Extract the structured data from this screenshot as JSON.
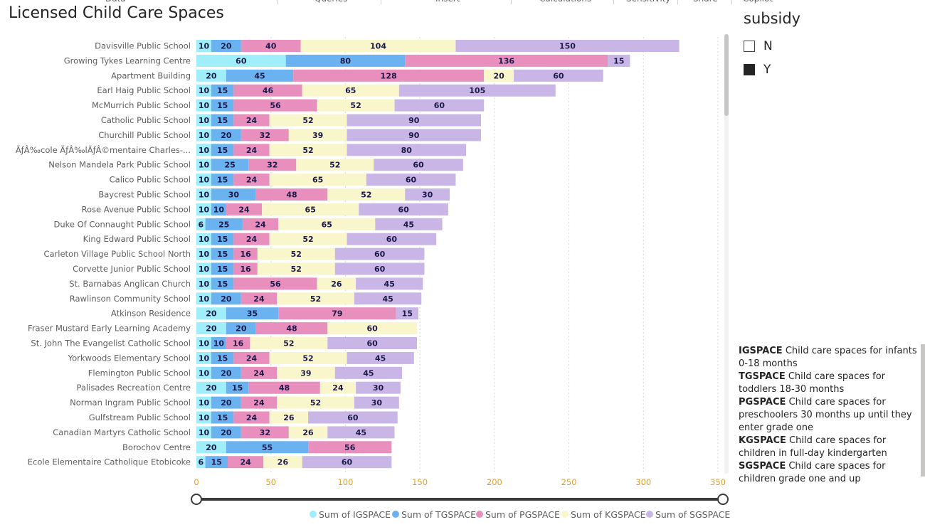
{
  "ribbon": {
    "tabs": [
      "Data",
      "Queries",
      "Insert",
      "Calculations",
      "Sensitivity",
      "Share",
      "Copilot"
    ],
    "tab_positions_hidden": true
  },
  "title": "Licensed Child Care Spaces",
  "slicer": {
    "title": "subsidy",
    "items": [
      {
        "label": "N",
        "checked": false
      },
      {
        "label": "Y",
        "checked": true
      }
    ]
  },
  "notes": [
    {
      "code": "IGSPACE",
      "text": "Child care spaces for infants 0-18 months"
    },
    {
      "code": "TGSPACE",
      "text": "Child care spaces for toddlers 18-30 months"
    },
    {
      "code": "PGSPACE",
      "text": "Child care spaces for preschoolers 30 months up until they enter grade one"
    },
    {
      "code": "KGSPACE",
      "text": "Child care spaces for children in full-day kindergarten"
    },
    {
      "code": "SGSPACE",
      "text": "Child care spaces for children grade one and up"
    }
  ],
  "colors": {
    "IGSPACE": "#a0eefa",
    "TGSPACE": "#6ab2f0",
    "PGSPACE": "#e88fbd",
    "KGSPACE": "#faf6cc",
    "SGSPACE": "#c9b6e6"
  },
  "chart_data": {
    "type": "bar",
    "orientation": "horizontal",
    "stacked": true,
    "title": "Licensed Child Care Spaces",
    "xlim": [
      0,
      350
    ],
    "x_ticks": [
      0,
      50,
      100,
      150,
      200,
      250,
      300,
      350
    ],
    "grid": true,
    "legend_position": "bottom",
    "categories": [
      "Davisville Public School",
      "Growing Tykes Learning Centre",
      "Apartment Building",
      "Earl Haig Public School",
      "McMurrich Public School",
      "Catholic Public School",
      "Churchill Public School",
      "ÃƒÂ‰cole ÃƒÂ‰lÃƒÂ©mentaire Charles-...",
      "Nelson Mandela Park Public School",
      "Calico Public School",
      "Baycrest Public School",
      "Rose Avenue Public School",
      "Duke Of Connaught Public School",
      "King Edward Public School",
      "Carleton Village Public School North",
      "Corvette Junior Public School",
      "St. Barnabas Anglican Church",
      "Rawlinson Community School",
      "Atkinson Residence",
      "Fraser Mustard Early Learning Academy",
      "St. John The Evangelist Catholic School",
      "Yorkwoods Elementary School",
      "Flemington Public School",
      "Palisades Recreation Centre",
      "Norman Ingram Public School",
      "Gulfstream Public School",
      "Canadian Martyrs Catholic School",
      "Borochov Centre",
      "Ecole Elementaire Catholique Etobicoke"
    ],
    "series": [
      {
        "name": "Sum of IGSPACE",
        "key": "IGSPACE",
        "values": [
          10,
          60,
          20,
          10,
          10,
          10,
          10,
          10,
          10,
          10,
          10,
          10,
          6,
          10,
          10,
          10,
          10,
          10,
          20,
          20,
          10,
          10,
          10,
          20,
          10,
          10,
          10,
          20,
          6
        ]
      },
      {
        "name": "Sum of TGSPACE",
        "key": "TGSPACE",
        "values": [
          20,
          80,
          45,
          15,
          15,
          15,
          20,
          15,
          25,
          15,
          30,
          10,
          25,
          15,
          15,
          15,
          15,
          20,
          35,
          20,
          10,
          15,
          20,
          15,
          20,
          15,
          20,
          55,
          15
        ]
      },
      {
        "name": "Sum of PGSPACE",
        "key": "PGSPACE",
        "values": [
          40,
          136,
          128,
          46,
          56,
          24,
          32,
          24,
          32,
          24,
          48,
          24,
          24,
          24,
          16,
          16,
          56,
          24,
          79,
          48,
          16,
          24,
          24,
          48,
          24,
          24,
          32,
          56,
          24
        ]
      },
      {
        "name": "Sum of KGSPACE",
        "key": "KGSPACE",
        "values": [
          104,
          null,
          20,
          65,
          52,
          52,
          39,
          52,
          52,
          65,
          52,
          65,
          65,
          52,
          52,
          52,
          26,
          52,
          null,
          60,
          52,
          52,
          39,
          24,
          52,
          26,
          26,
          null,
          26
        ]
      },
      {
        "name": "Sum of SGSPACE",
        "key": "SGSPACE",
        "values": [
          150,
          15,
          60,
          105,
          60,
          90,
          90,
          80,
          60,
          60,
          30,
          60,
          45,
          60,
          60,
          60,
          45,
          45,
          15,
          null,
          60,
          45,
          45,
          30,
          30,
          60,
          45,
          null,
          60
        ]
      }
    ]
  }
}
